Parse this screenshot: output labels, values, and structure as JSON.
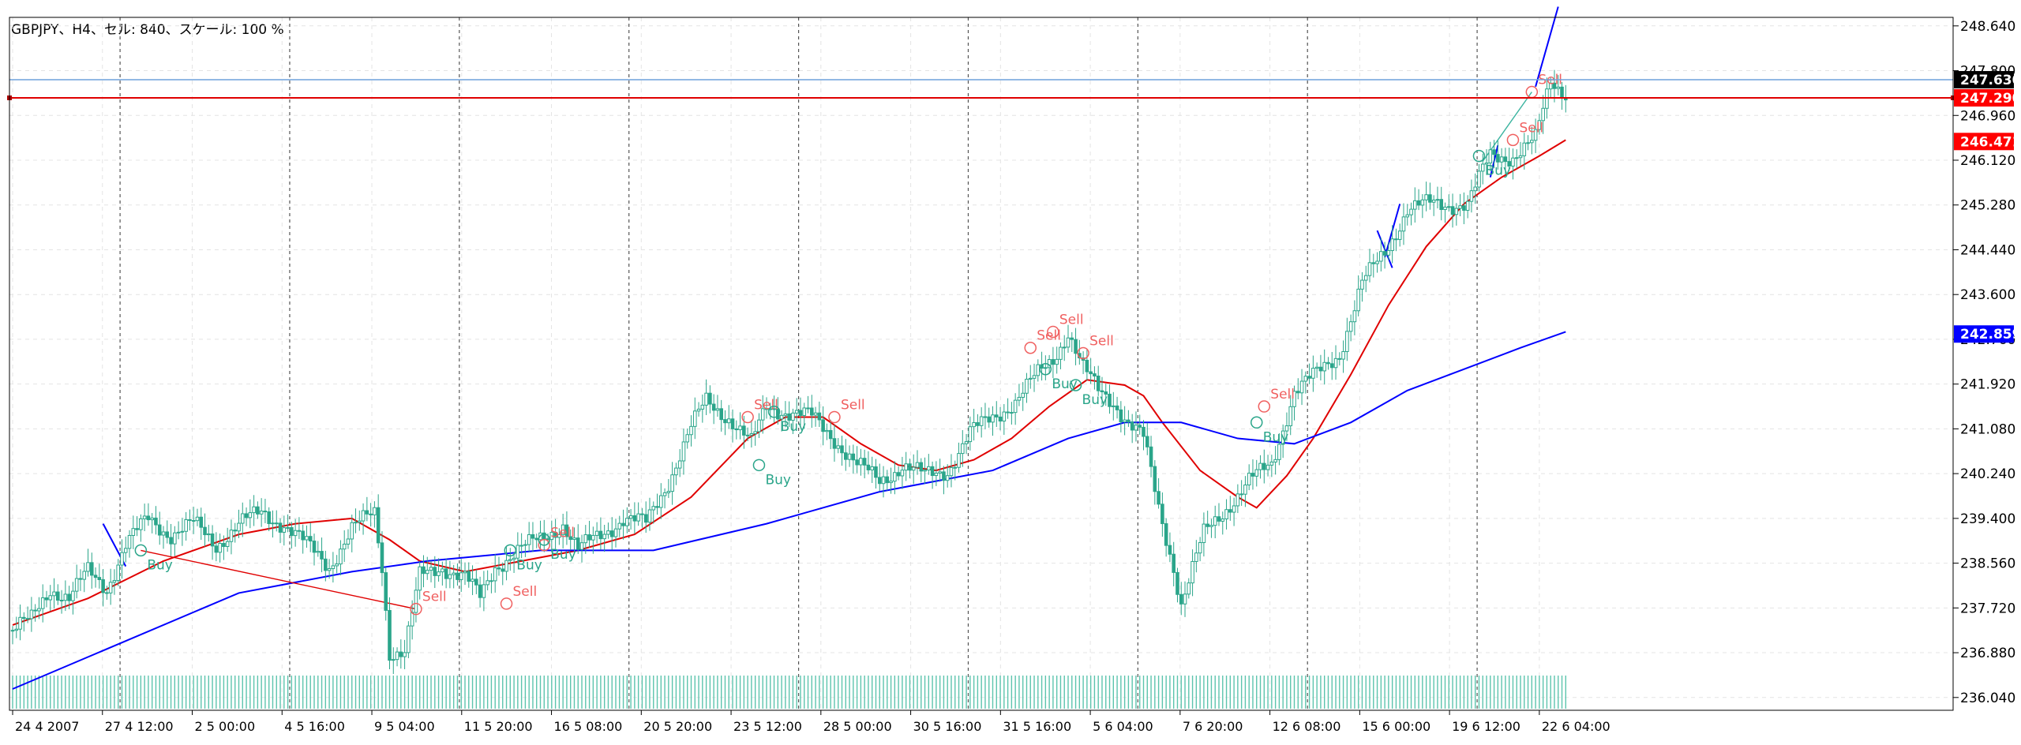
{
  "chart_data": {
    "type": "candlestick",
    "title": "GBPJPY、H4、セル: 840、スケール: 100 %",
    "ylim": [
      235.8,
      248.8
    ],
    "y_ticks": [
      "248.640",
      "247.800",
      "246.960",
      "246.120",
      "245.280",
      "244.440",
      "243.600",
      "242.760",
      "241.920",
      "241.080",
      "240.240",
      "239.400",
      "238.560",
      "237.720",
      "236.880",
      "236.040"
    ],
    "x_ticks": [
      "24 4 2007",
      "27 4 12:00",
      "2 5 00:00",
      "4 5 16:00",
      "9 5 04:00",
      "11 5 20:00",
      "16 5 08:00",
      "20 5 20:00",
      "23 5 12:00",
      "28 5 00:00",
      "30 5 16:00",
      "31 5 16:00",
      "5 6 04:00",
      "7 6 20:00",
      "12 6 08:00",
      "15 6 00:00",
      "19 6 12:00",
      "22 6 04:00"
    ],
    "price_labels": [
      {
        "value": "247.630",
        "color": "#000000"
      },
      {
        "value": "247.290",
        "color": "#ff0000"
      },
      {
        "value": "246.471",
        "color": "#ff0000"
      },
      {
        "value": "242.859",
        "color": "#0000ff"
      }
    ],
    "horizontal_lines": [
      {
        "value": 247.63,
        "color": "#6fa0dc"
      },
      {
        "value": 247.29,
        "color": "#e00000"
      }
    ],
    "close_anchors": [
      [
        0,
        237.3
      ],
      [
        5,
        237.5
      ],
      [
        10,
        238.1
      ],
      [
        15,
        237.9
      ],
      [
        20,
        238.4
      ],
      [
        25,
        238.1
      ],
      [
        30,
        238.9
      ],
      [
        36,
        239.4
      ],
      [
        42,
        239.1
      ],
      [
        48,
        239.3
      ],
      [
        54,
        238.9
      ],
      [
        60,
        239.3
      ],
      [
        66,
        239.5
      ],
      [
        72,
        239.3
      ],
      [
        78,
        238.9
      ],
      [
        84,
        238.5
      ],
      [
        90,
        239.2
      ],
      [
        96,
        239.5
      ],
      [
        98,
        238.5
      ],
      [
        100,
        236.9
      ],
      [
        104,
        236.9
      ],
      [
        108,
        238.3
      ],
      [
        114,
        238.5
      ],
      [
        120,
        238.3
      ],
      [
        124,
        237.9
      ],
      [
        128,
        238.5
      ],
      [
        134,
        238.8
      ],
      [
        140,
        239.0
      ],
      [
        146,
        239.3
      ],
      [
        150,
        238.8
      ],
      [
        156,
        239.1
      ],
      [
        162,
        239.4
      ],
      [
        168,
        239.3
      ],
      [
        174,
        240.1
      ],
      [
        180,
        241.1
      ],
      [
        184,
        241.6
      ],
      [
        190,
        241.3
      ],
      [
        196,
        240.8
      ],
      [
        200,
        241.5
      ],
      [
        206,
        241.4
      ],
      [
        212,
        241.3
      ],
      [
        218,
        240.9
      ],
      [
        224,
        240.4
      ],
      [
        230,
        240.1
      ],
      [
        236,
        240.4
      ],
      [
        242,
        240.2
      ],
      [
        248,
        240.3
      ],
      [
        254,
        241.0
      ],
      [
        260,
        241.3
      ],
      [
        266,
        241.6
      ],
      [
        272,
        242.1
      ],
      [
        276,
        242.4
      ],
      [
        280,
        242.9
      ],
      [
        284,
        242.2
      ],
      [
        288,
        241.8
      ],
      [
        292,
        241.6
      ],
      [
        296,
        241.2
      ],
      [
        300,
        240.9
      ],
      [
        304,
        239.6
      ],
      [
        308,
        238.5
      ],
      [
        310,
        237.8
      ],
      [
        316,
        239.1
      ],
      [
        322,
        239.6
      ],
      [
        328,
        240.1
      ],
      [
        334,
        240.4
      ],
      [
        340,
        241.8
      ],
      [
        346,
        242.1
      ],
      [
        352,
        242.5
      ],
      [
        358,
        243.8
      ],
      [
        364,
        244.4
      ],
      [
        370,
        245.2
      ],
      [
        376,
        245.3
      ],
      [
        382,
        245.3
      ],
      [
        386,
        245.3
      ],
      [
        392,
        246.2
      ],
      [
        398,
        246.2
      ],
      [
        404,
        246.5
      ],
      [
        408,
        247.6
      ],
      [
        412,
        247.4
      ]
    ],
    "series": [
      {
        "name": "",
        "color": "#e00000",
        "points": [
          [
            0,
            237.4
          ],
          [
            20,
            237.9
          ],
          [
            40,
            238.6
          ],
          [
            60,
            239.1
          ],
          [
            75,
            239.3
          ],
          [
            90,
            239.4
          ],
          [
            100,
            239.0
          ],
          [
            108,
            238.6
          ],
          [
            120,
            238.4
          ],
          [
            135,
            238.6
          ],
          [
            150,
            238.8
          ],
          [
            165,
            239.1
          ],
          [
            180,
            239.8
          ],
          [
            195,
            240.9
          ],
          [
            205,
            241.3
          ],
          [
            215,
            241.3
          ],
          [
            225,
            240.8
          ],
          [
            235,
            240.4
          ],
          [
            245,
            240.3
          ],
          [
            255,
            240.5
          ],
          [
            265,
            240.9
          ],
          [
            275,
            241.5
          ],
          [
            285,
            242.0
          ],
          [
            295,
            241.9
          ],
          [
            300,
            241.7
          ],
          [
            305,
            241.2
          ],
          [
            315,
            240.3
          ],
          [
            325,
            239.8
          ],
          [
            330,
            239.6
          ],
          [
            338,
            240.2
          ],
          [
            345,
            240.9
          ],
          [
            355,
            242.1
          ],
          [
            365,
            243.4
          ],
          [
            375,
            244.5
          ],
          [
            385,
            245.3
          ],
          [
            395,
            245.8
          ],
          [
            405,
            246.2
          ],
          [
            412,
            246.5
          ]
        ]
      },
      {
        "name": "",
        "color": "#0000ff",
        "points": [
          [
            0,
            236.2
          ],
          [
            30,
            237.1
          ],
          [
            60,
            238.0
          ],
          [
            90,
            238.4
          ],
          [
            110,
            238.6
          ],
          [
            140,
            238.8
          ],
          [
            170,
            238.8
          ],
          [
            200,
            239.3
          ],
          [
            230,
            239.9
          ],
          [
            260,
            240.3
          ],
          [
            280,
            240.9
          ],
          [
            295,
            241.2
          ],
          [
            310,
            241.2
          ],
          [
            325,
            240.9
          ],
          [
            340,
            240.8
          ],
          [
            355,
            241.2
          ],
          [
            370,
            241.8
          ],
          [
            385,
            242.2
          ],
          [
            400,
            242.6
          ],
          [
            412,
            242.9
          ]
        ]
      },
      {
        "name": "",
        "color": "#0000ff",
        "points": [
          [
            24,
            239.3
          ],
          [
            30,
            238.5
          ]
        ]
      },
      {
        "name": "",
        "color": "#0000ff",
        "points": [
          [
            364,
            244.3
          ],
          [
            368,
            245.3
          ]
        ]
      },
      {
        "name": "",
        "color": "#0000ff",
        "points": [
          [
            362,
            244.8
          ],
          [
            366,
            244.1
          ]
        ]
      },
      {
        "name": "",
        "color": "#0000ff",
        "points": [
          [
            394,
            246.4
          ],
          [
            392,
            245.8
          ]
        ]
      },
      {
        "name": "",
        "color": "#0000ff",
        "points": [
          [
            404,
            247.5
          ],
          [
            410,
            249.0
          ]
        ]
      }
    ],
    "signal_lines": [
      {
        "color": "#e00000",
        "points": [
          [
            34,
            238.8
          ],
          [
            107,
            237.7
          ]
        ]
      },
      {
        "color": "#3cb4a0",
        "points": [
          [
            390,
            246.1
          ],
          [
            403,
            247.4
          ]
        ]
      }
    ],
    "signals": [
      {
        "bar": 34,
        "price": 238.8,
        "label": "Buy",
        "kind": "buy"
      },
      {
        "bar": 107,
        "price": 237.7,
        "label": "Sell",
        "kind": "sell"
      },
      {
        "bar": 131,
        "price": 237.8,
        "label": "Sell",
        "kind": "sell"
      },
      {
        "bar": 132,
        "price": 238.8,
        "label": "Buy",
        "kind": "buy"
      },
      {
        "bar": 141,
        "price": 238.9,
        "label": "Sell",
        "kind": "sell"
      },
      {
        "bar": 141,
        "price": 239.0,
        "label": "Buy",
        "kind": "buy"
      },
      {
        "bar": 195,
        "price": 241.3,
        "label": "Sell",
        "kind": "sell"
      },
      {
        "bar": 198,
        "price": 240.4,
        "label": "Buy",
        "kind": "buy"
      },
      {
        "bar": 202,
        "price": 241.4,
        "label": "Buy",
        "kind": "buy"
      },
      {
        "bar": 218,
        "price": 241.3,
        "label": "Sell",
        "kind": "sell"
      },
      {
        "bar": 270,
        "price": 242.6,
        "label": "Sell",
        "kind": "sell"
      },
      {
        "bar": 276,
        "price": 242.9,
        "label": "Sell",
        "kind": "sell"
      },
      {
        "bar": 274,
        "price": 242.2,
        "label": "Buy",
        "kind": "buy"
      },
      {
        "bar": 284,
        "price": 242.5,
        "label": "Sell",
        "kind": "sell"
      },
      {
        "bar": 282,
        "price": 241.9,
        "label": "Buy",
        "kind": "buy"
      },
      {
        "bar": 332,
        "price": 241.5,
        "label": "Sell",
        "kind": "sell"
      },
      {
        "bar": 330,
        "price": 241.2,
        "label": "Buy",
        "kind": "buy"
      },
      {
        "bar": 389,
        "price": 246.2,
        "label": "Buy",
        "kind": "buy"
      },
      {
        "bar": 398,
        "price": 246.5,
        "label": "Sell",
        "kind": "sell"
      },
      {
        "bar": 403,
        "price": 247.4,
        "label": "Sell",
        "kind": "sell"
      }
    ],
    "grid": true
  }
}
